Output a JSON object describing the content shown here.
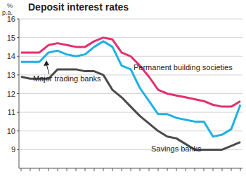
{
  "chart_data": {
    "type": "line",
    "title": "Deposit interest rates",
    "y_label": "% p.a.",
    "categories": [
      null,
      null,
      null,
      null,
      null,
      null,
      null,
      null,
      null,
      null,
      null,
      null,
      null,
      null,
      null,
      null,
      null,
      null,
      null,
      null,
      null,
      null,
      null,
      null,
      null
    ],
    "series": [
      {
        "name": "Permanent building societies",
        "color": "#e3306e",
        "values": [
          14.2,
          14.2,
          14.2,
          14.6,
          14.7,
          14.6,
          14.5,
          14.5,
          14.8,
          15.0,
          14.9,
          14.2,
          14.0,
          13.5,
          12.9,
          12.2,
          12.0,
          11.9,
          11.8,
          11.7,
          11.6,
          11.4,
          11.3,
          11.3,
          11.6
        ]
      },
      {
        "name": "Major trading banks",
        "color": "#1fb1e3",
        "values": [
          13.7,
          13.7,
          13.7,
          14.2,
          14.3,
          14.1,
          14.0,
          14.1,
          14.5,
          14.8,
          14.5,
          13.5,
          13.3,
          12.3,
          11.6,
          10.9,
          10.9,
          10.7,
          10.6,
          10.5,
          10.5,
          9.7,
          9.8,
          10.1,
          11.4
        ]
      },
      {
        "name": "Savings banks",
        "color": "#4a4a4a",
        "values": [
          12.9,
          12.8,
          12.8,
          12.8,
          13.3,
          13.3,
          13.3,
          13.2,
          13.2,
          13.0,
          12.2,
          11.8,
          11.3,
          10.8,
          10.4,
          10.0,
          9.7,
          9.6,
          9.3,
          9.0,
          9.0,
          9.0,
          9.0,
          9.2,
          9.4
        ]
      }
    ],
    "ylim": [
      8,
      16
    ],
    "yticks": [
      9,
      10,
      11,
      12,
      13,
      14,
      15,
      16
    ],
    "grid": true,
    "tick_labels": "y"
  }
}
